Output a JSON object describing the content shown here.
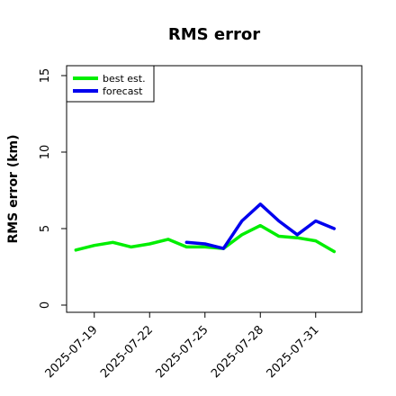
{
  "chart_data": {
    "type": "line",
    "title": "RMS error",
    "xlabel": "",
    "ylabel": "RMS error (km)",
    "ylim": [
      0,
      15
    ],
    "yticks": [
      0,
      5,
      10,
      15
    ],
    "xticks": [
      "2025-07-19",
      "2025-07-22",
      "2025-07-25",
      "2025-07-28",
      "2025-07-31"
    ],
    "xlim": [
      "2025-07-17T12:00",
      "2025-08-02T12:00"
    ],
    "legend_position": "top-left",
    "grid": false,
    "series": [
      {
        "name": "best est.",
        "color": "#00ee00",
        "points": [
          [
            "2025-07-18T00:00",
            3.6
          ],
          [
            "2025-07-19T00:00",
            3.9
          ],
          [
            "2025-07-20T00:00",
            4.1
          ],
          [
            "2025-07-21T00:00",
            3.8
          ],
          [
            "2025-07-22T00:00",
            4.0
          ],
          [
            "2025-07-23T00:00",
            4.3
          ],
          [
            "2025-07-24T00:00",
            3.8
          ],
          [
            "2025-07-25T00:00",
            3.8
          ],
          [
            "2025-07-26T00:00",
            3.7
          ],
          [
            "2025-07-27T00:00",
            4.6
          ],
          [
            "2025-07-28T00:00",
            5.2
          ],
          [
            "2025-07-29T00:00",
            4.5
          ],
          [
            "2025-07-30T00:00",
            4.4
          ],
          [
            "2025-07-31T00:00",
            4.2
          ],
          [
            "2025-08-01T00:00",
            3.5
          ]
        ]
      },
      {
        "name": "forecast",
        "color": "#0000ee",
        "points": [
          [
            "2025-07-24T00:00",
            4.1
          ],
          [
            "2025-07-25T00:00",
            4.0
          ],
          [
            "2025-07-26T00:00",
            3.7
          ],
          [
            "2025-07-27T00:00",
            5.5
          ],
          [
            "2025-07-28T00:00",
            6.6
          ],
          [
            "2025-07-29T00:00",
            5.5
          ],
          [
            "2025-07-30T00:00",
            4.6
          ],
          [
            "2025-07-31T00:00",
            5.5
          ],
          [
            "2025-08-01T00:00",
            5.0
          ]
        ]
      }
    ]
  }
}
